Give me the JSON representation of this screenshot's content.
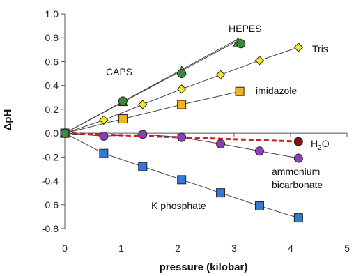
{
  "chart_data": {
    "type": "scatter",
    "title": "",
    "xlabel": "pressure (kilobar)",
    "ylabel": "ΔpH",
    "xlim": [
      0,
      5
    ],
    "ylim": [
      -0.8,
      1.0
    ],
    "xticks": [
      0,
      1,
      2,
      3,
      4,
      5
    ],
    "yticks": [
      -0.8,
      -0.6,
      -0.4,
      -0.2,
      0.0,
      0.2,
      0.4,
      0.6,
      0.8,
      1.0
    ],
    "grid": false,
    "legend": "none",
    "series": [
      {
        "name": "HEPES",
        "marker": "circle",
        "color": "#3a8a3a",
        "line": "solid",
        "points": [
          [
            0,
            0.0
          ],
          [
            1.03,
            0.27
          ],
          [
            2.07,
            0.5
          ],
          [
            3.12,
            0.75
          ]
        ],
        "fit_end": [
          3.12,
          0.79
        ]
      },
      {
        "name": "CAPS",
        "marker": "triangle",
        "color": "#7ac142",
        "line": "solid",
        "points": [
          [
            0,
            0.0
          ],
          [
            1.03,
            0.26
          ],
          [
            2.07,
            0.52
          ],
          [
            3.07,
            0.76
          ]
        ],
        "fit_end": [
          3.07,
          0.79
        ]
      },
      {
        "name": "Tris",
        "marker": "diamond",
        "color": "#f2e825",
        "line": "solid",
        "points": [
          [
            0,
            0.0
          ],
          [
            0.69,
            0.11
          ],
          [
            1.38,
            0.24
          ],
          [
            2.07,
            0.37
          ],
          [
            2.76,
            0.49
          ],
          [
            3.45,
            0.61
          ],
          [
            4.14,
            0.72
          ]
        ]
      },
      {
        "name": "imidazole",
        "marker": "square",
        "color": "#f5b21c",
        "line": "solid",
        "points": [
          [
            0,
            0.0
          ],
          [
            1.03,
            0.12
          ],
          [
            2.07,
            0.24
          ],
          [
            3.1,
            0.35
          ]
        ]
      },
      {
        "name": "H₂O",
        "name_main": "H",
        "name_sub": "2",
        "name_tail": "O",
        "marker": "circle",
        "color": "#8b0e0e",
        "line": "dashed",
        "line_color": "#d42020",
        "points": [
          [
            0,
            0.0
          ],
          [
            4.14,
            -0.07
          ]
        ]
      },
      {
        "name": "ammonium bicarbonate",
        "name_line1": "ammonium",
        "name_line2": "bicarbonate",
        "marker": "circle",
        "color": "#8a3fb8",
        "line": "solid",
        "points": [
          [
            0,
            0.0
          ],
          [
            0.69,
            -0.025
          ],
          [
            1.38,
            -0.01
          ],
          [
            2.07,
            -0.035
          ],
          [
            2.76,
            -0.09
          ],
          [
            3.45,
            -0.15
          ],
          [
            4.14,
            -0.21
          ]
        ]
      },
      {
        "name": "K phosphate",
        "marker": "square",
        "color": "#2f7bd6",
        "line": "solid",
        "points": [
          [
            0,
            0.0
          ],
          [
            0.69,
            -0.17
          ],
          [
            1.38,
            -0.28
          ],
          [
            2.07,
            -0.39
          ],
          [
            2.76,
            -0.5
          ],
          [
            3.45,
            -0.61
          ],
          [
            4.14,
            -0.71
          ]
        ]
      }
    ]
  }
}
